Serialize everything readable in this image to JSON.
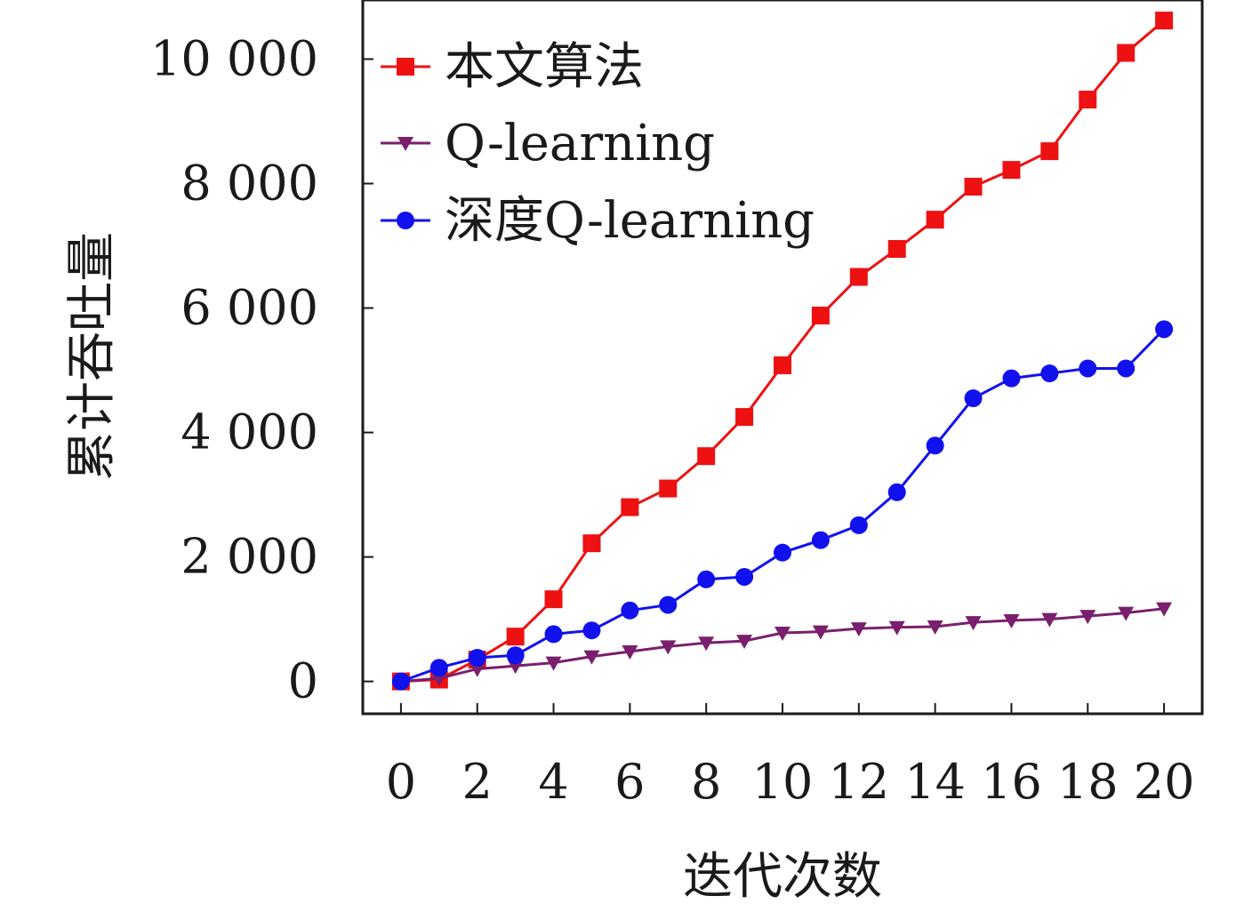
{
  "chart_data": {
    "type": "line",
    "xlabel": "迭代次数",
    "ylabel": "累计吞吐量",
    "x": [
      0,
      1,
      2,
      3,
      4,
      5,
      6,
      7,
      8,
      9,
      10,
      11,
      12,
      13,
      14,
      15,
      16,
      17,
      18,
      19,
      20
    ],
    "xlim": [
      -1,
      21
    ],
    "ylim": [
      -520,
      10950
    ],
    "xticks": [
      0,
      2,
      4,
      6,
      8,
      10,
      12,
      14,
      16,
      18,
      20
    ],
    "xtick_labels": [
      "0",
      "2",
      "4",
      "6",
      "8",
      "10",
      "12",
      "14",
      "16",
      "18",
      "20"
    ],
    "yticks": [
      0,
      2000,
      4000,
      6000,
      8000,
      10000
    ],
    "ytick_labels": [
      "0",
      "2 000",
      "4 000",
      "6 000",
      "8 000",
      "10 000"
    ],
    "grid": false,
    "legend": "top-left",
    "series": [
      {
        "name": "本文算法",
        "color": "#ee1111",
        "marker": "square",
        "values": [
          0,
          30,
          350,
          720,
          1320,
          2220,
          2800,
          3100,
          3620,
          4250,
          5080,
          5880,
          6500,
          6950,
          7420,
          7950,
          8220,
          8520,
          9350,
          10100,
          10620
        ]
      },
      {
        "name": "Q-learning",
        "color": "#7a1f6e",
        "marker": "triangle-down",
        "values": [
          0,
          50,
          200,
          250,
          300,
          400,
          480,
          560,
          620,
          650,
          780,
          800,
          850,
          870,
          880,
          950,
          980,
          1000,
          1050,
          1100,
          1170
        ]
      },
      {
        "name": "深度Q-learning",
        "color": "#1111ee",
        "marker": "circle",
        "values": [
          0,
          220,
          380,
          420,
          760,
          820,
          1140,
          1230,
          1640,
          1680,
          2070,
          2270,
          2510,
          3040,
          3790,
          4550,
          4870,
          4950,
          5030,
          5030,
          5660
        ]
      }
    ]
  }
}
